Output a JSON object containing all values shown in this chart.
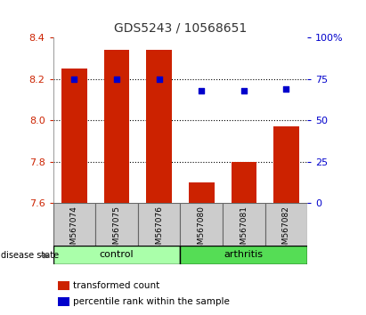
{
  "title": "GDS5243 / 10568651",
  "samples": [
    "GSM567074",
    "GSM567075",
    "GSM567076",
    "GSM567080",
    "GSM567081",
    "GSM567082"
  ],
  "groups": [
    "control",
    "control",
    "control",
    "arthritis",
    "arthritis",
    "arthritis"
  ],
  "bar_values": [
    8.25,
    8.34,
    8.34,
    7.7,
    7.8,
    7.97
  ],
  "bar_bottom": 7.6,
  "percentile_values": [
    75,
    75,
    75,
    68,
    68,
    69
  ],
  "bar_color": "#cc2200",
  "dot_color": "#0000cc",
  "ylim_left": [
    7.6,
    8.4
  ],
  "ylim_right": [
    0,
    100
  ],
  "yticks_left": [
    7.6,
    7.8,
    8.0,
    8.2,
    8.4
  ],
  "yticks_right": [
    0,
    25,
    50,
    75,
    100
  ],
  "control_color": "#aaffaa",
  "arthritis_color": "#55dd55",
  "sample_box_color": "#cccccc",
  "label_bar_color": "#cc2200",
  "label_dot_color": "#0000cc",
  "title_color": "#333333",
  "grid_color": "#000000",
  "tick_color_left": "#cc2200",
  "tick_color_right": "#0000cc",
  "bar_width": 0.6
}
